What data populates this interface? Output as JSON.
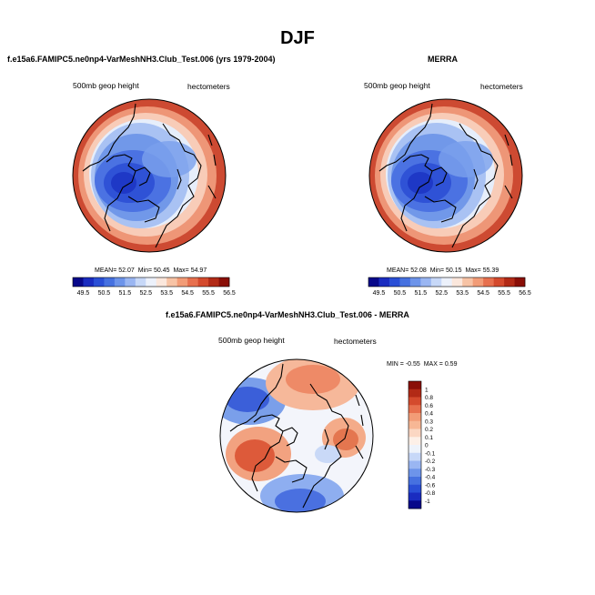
{
  "main_title": "DJF",
  "panels": [
    {
      "title": "f.e15a6.FAMIPC5.ne0np4-VarMeshNH3.Club_Test.006 (yrs 1979-2004)",
      "left_label": "500mb geop height",
      "right_label": "hectometers",
      "stats": {
        "mean_label": "MEAN=",
        "mean": "52.07",
        "min_label": "Min=",
        "min": "50.45",
        "max_label": "Max=",
        "max": "54.97"
      }
    },
    {
      "title": "MERRA",
      "left_label": "500mb geop height",
      "right_label": "hectometers",
      "stats": {
        "mean_label": "MEAN=",
        "mean": "52.08",
        "min_label": "Min=",
        "min": "50.15",
        "max_label": "Max=",
        "max": "55.39"
      }
    },
    {
      "title": "f.e15a6.FAMIPC5.ne0np4-VarMeshNH3.Club_Test.006 - MERRA",
      "left_label": "500mb geop height",
      "right_label": "hectometers",
      "stats": {
        "min_label": "MIN =",
        "min": "-0.55",
        "max_label": "MAX =",
        "max": "0.59"
      }
    }
  ],
  "colorbar_abs": {
    "tick_labels": [
      "49.5",
      "50.5",
      "51.5",
      "52.5",
      "53.5",
      "54.5",
      "55.5",
      "56.5"
    ],
    "colors": [
      "#08088a",
      "#1a2cc0",
      "#2a4fd6",
      "#4671e0",
      "#6d94ea",
      "#9ab6f2",
      "#c7d8f8",
      "#ecf1fb",
      "#fbe7dc",
      "#f7c3a5",
      "#f29c77",
      "#e7704e",
      "#d44a2d",
      "#b22a16",
      "#8a0f07"
    ]
  },
  "colorbar_diff": {
    "tick_labels": [
      "1",
      "0.8",
      "0.6",
      "0.4",
      "0.3",
      "0.2",
      "0.1",
      "0",
      "-0.1",
      "-0.2",
      "-0.3",
      "-0.4",
      "-0.6",
      "-0.8",
      "-1"
    ],
    "colors": [
      "#8a0f07",
      "#b22a16",
      "#d44a2d",
      "#e7704e",
      "#f29c77",
      "#f7b795",
      "#fbd7c3",
      "#fdf0e8",
      "#eef3fb",
      "#c7d8f8",
      "#9ab6f2",
      "#6d94ea",
      "#4671e0",
      "#2a4fd6",
      "#1a2cc0",
      "#08088a"
    ]
  }
}
